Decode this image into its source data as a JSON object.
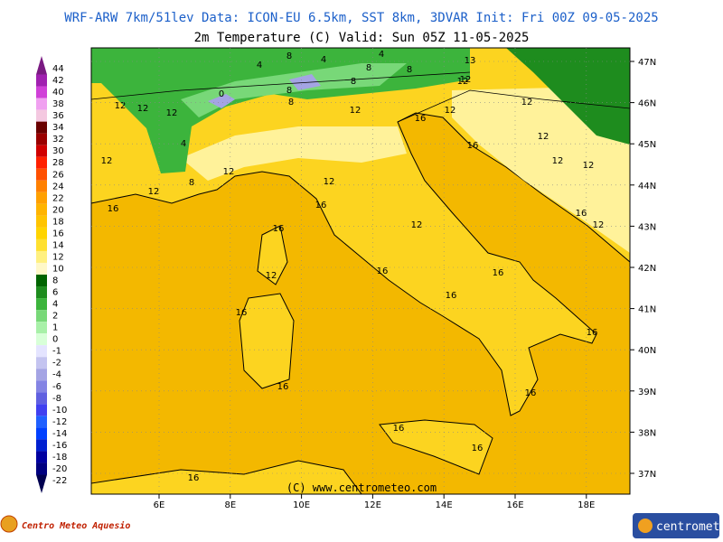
{
  "header": {
    "line1": "WRF-ARW 7km/51lev   Data: ICON-EU 6.5km, SST 8km, 3DVAR   Init: Fri 00Z 09-05-2025",
    "line2": "2m Temperature (C)  Valid: Sun 05Z 11-05-2025"
  },
  "colorbar": [
    {
      "value": 44,
      "color": "#7a1a82"
    },
    {
      "value": 42,
      "color": "#a020b0"
    },
    {
      "value": 40,
      "color": "#d040d8"
    },
    {
      "value": 38,
      "color": "#f0a0f0"
    },
    {
      "value": 36,
      "color": "#f4c8e0"
    },
    {
      "value": 34,
      "color": "#6a0000"
    },
    {
      "value": 32,
      "color": "#9a0000"
    },
    {
      "value": 30,
      "color": "#d00000"
    },
    {
      "value": 28,
      "color": "#ff2000"
    },
    {
      "value": 26,
      "color": "#ff5000"
    },
    {
      "value": 24,
      "color": "#ff8000"
    },
    {
      "value": 22,
      "color": "#ffa000"
    },
    {
      "value": 20,
      "color": "#ffb400"
    },
    {
      "value": 18,
      "color": "#ffc400"
    },
    {
      "value": 16,
      "color": "#ffd400"
    },
    {
      "value": 14,
      "color": "#ffe030"
    },
    {
      "value": 12,
      "color": "#fff080"
    },
    {
      "value": 10,
      "color": "#fff8c8"
    },
    {
      "value": 8,
      "color": "#006400"
    },
    {
      "value": 6,
      "color": "#1e8c1e"
    },
    {
      "value": 4,
      "color": "#3cb43c"
    },
    {
      "value": 2,
      "color": "#78d878"
    },
    {
      "value": 1,
      "color": "#a8f0a8"
    },
    {
      "value": 0,
      "color": "#d8ffd8"
    },
    {
      "value": -1,
      "color": "#e4e4ff"
    },
    {
      "value": -2,
      "color": "#c4c4f0"
    },
    {
      "value": -4,
      "color": "#a4a4e4"
    },
    {
      "value": -6,
      "color": "#8484e4"
    },
    {
      "value": -8,
      "color": "#6060e0"
    },
    {
      "value": -10,
      "color": "#4040f0"
    },
    {
      "value": -12,
      "color": "#2060ff"
    },
    {
      "value": -14,
      "color": "#0040ff"
    },
    {
      "value": -16,
      "color": "#0020d0"
    },
    {
      "value": -18,
      "color": "#0000a0"
    },
    {
      "value": -20,
      "color": "#000080"
    },
    {
      "value": -22,
      "color": "#000050"
    }
  ],
  "lon_ticks": [
    {
      "value": 6,
      "label": "6E"
    },
    {
      "value": 8,
      "label": "8E"
    },
    {
      "value": 10,
      "label": "10E"
    },
    {
      "value": 12,
      "label": "12E"
    },
    {
      "value": 14,
      "label": "14E"
    },
    {
      "value": 16,
      "label": "16E"
    },
    {
      "value": 18,
      "label": "18E"
    }
  ],
  "lat_ticks": [
    {
      "value": 47,
      "label": "47N"
    },
    {
      "value": 46,
      "label": "46N"
    },
    {
      "value": 45,
      "label": "45N"
    },
    {
      "value": 44,
      "label": "44N"
    },
    {
      "value": 43,
      "label": "43N"
    },
    {
      "value": 42,
      "label": "42N"
    },
    {
      "value": 41,
      "label": "41N"
    },
    {
      "value": 40,
      "label": "40N"
    },
    {
      "value": 39,
      "label": "39N"
    },
    {
      "value": 38,
      "label": "38N"
    },
    {
      "value": 37,
      "label": "37N"
    }
  ],
  "contour_labels": [
    "8",
    "4",
    "8",
    "4",
    "8",
    "8",
    "4",
    "13",
    "12",
    "12",
    "12",
    "12",
    "0",
    "8",
    "8",
    "4",
    "12",
    "12",
    "12",
    "16",
    "12",
    "12",
    "12",
    "12",
    "12",
    "12",
    "8",
    "16",
    "12",
    "12",
    "16",
    "16",
    "16",
    "12",
    "12",
    "16",
    "12",
    "16",
    "16",
    "16",
    "16",
    "16",
    "16",
    "16",
    "16",
    "16",
    "16"
  ],
  "copyright": "(C) www.centrometeo.com",
  "logo_left": "Centro Meteo Aquesio",
  "logo_right": "centrometeo"
}
